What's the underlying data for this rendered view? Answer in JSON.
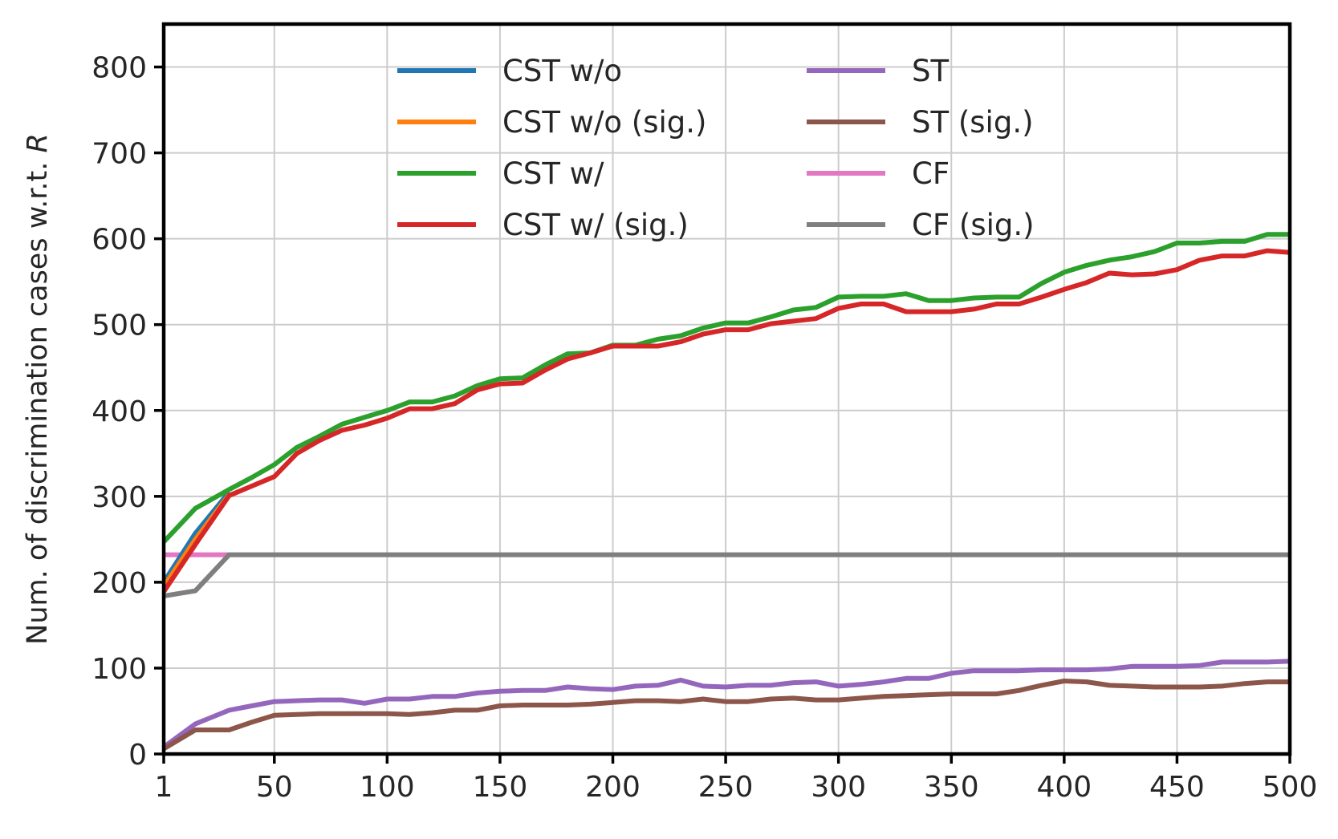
{
  "chart_data": {
    "type": "line",
    "title": "",
    "xlabel": "",
    "ylabel": "Num. of discrimination cases w.r.t. ",
    "ylabel_var": "R",
    "xlim": [
      1,
      500
    ],
    "ylim": [
      0,
      850
    ],
    "xticks": [
      1,
      50,
      100,
      150,
      200,
      250,
      300,
      350,
      400,
      450,
      500
    ],
    "yticks": [
      0,
      100,
      200,
      300,
      400,
      500,
      600,
      700,
      800
    ],
    "grid": true,
    "legend_position": "top-center",
    "legend_columns": 2,
    "series": [
      {
        "name": "CST w/o",
        "color": "#1f77b4",
        "x": [
          1,
          15,
          30
        ],
        "y": [
          200,
          257,
          305
        ]
      },
      {
        "name": "CST w/o (sig.)",
        "color": "#ff7f0e",
        "x": [
          1,
          15,
          30
        ],
        "y": [
          195,
          250,
          302
        ]
      },
      {
        "name": "CST w/",
        "color": "#2ca02c",
        "x": [
          1,
          15,
          30,
          40,
          50,
          60,
          70,
          80,
          90,
          100,
          110,
          120,
          130,
          140,
          150,
          160,
          170,
          180,
          190,
          200,
          210,
          220,
          230,
          240,
          250,
          260,
          270,
          280,
          290,
          300,
          310,
          320,
          330,
          340,
          350,
          360,
          370,
          380,
          390,
          400,
          410,
          420,
          430,
          440,
          450,
          460,
          470,
          480,
          490,
          500
        ],
        "y": [
          247,
          286,
          308,
          322,
          337,
          357,
          370,
          384,
          392,
          400,
          410,
          410,
          417,
          429,
          437,
          438,
          453,
          466,
          467,
          476,
          476,
          483,
          487,
          496,
          502,
          502,
          509,
          517,
          520,
          532,
          533,
          533,
          536,
          528,
          528,
          531,
          532,
          532,
          548,
          561,
          569,
          575,
          579,
          585,
          595,
          595,
          597,
          597,
          605,
          605
        ]
      },
      {
        "name": "CST w/ (sig.)",
        "color": "#d62728",
        "x": [
          1,
          15,
          30,
          40,
          50,
          60,
          70,
          80,
          90,
          100,
          110,
          120,
          130,
          140,
          150,
          160,
          170,
          180,
          190,
          200,
          210,
          220,
          230,
          240,
          250,
          260,
          270,
          280,
          290,
          300,
          310,
          320,
          330,
          340,
          350,
          360,
          370,
          380,
          390,
          400,
          410,
          420,
          430,
          440,
          450,
          460,
          470,
          480,
          490,
          500
        ],
        "y": [
          189,
          244,
          301,
          312,
          323,
          350,
          365,
          377,
          383,
          391,
          402,
          402,
          408,
          424,
          431,
          432,
          447,
          460,
          467,
          475,
          475,
          475,
          480,
          489,
          494,
          494,
          501,
          504,
          507,
          519,
          524,
          524,
          515,
          515,
          515,
          518,
          524,
          524,
          532,
          541,
          549,
          560,
          558,
          559,
          564,
          575,
          580,
          580,
          586,
          584
        ]
      },
      {
        "name": "ST",
        "color": "#9467bd",
        "x": [
          1,
          15,
          30,
          40,
          50,
          60,
          70,
          80,
          90,
          100,
          110,
          120,
          130,
          140,
          150,
          160,
          170,
          180,
          190,
          200,
          210,
          220,
          230,
          240,
          250,
          260,
          270,
          280,
          290,
          300,
          310,
          320,
          330,
          340,
          350,
          360,
          370,
          380,
          390,
          400,
          410,
          420,
          430,
          440,
          450,
          460,
          470,
          480,
          490,
          500
        ],
        "y": [
          8,
          35,
          51,
          56,
          61,
          62,
          63,
          63,
          59,
          64,
          64,
          67,
          67,
          71,
          73,
          74,
          74,
          78,
          76,
          75,
          79,
          80,
          86,
          79,
          78,
          80,
          80,
          83,
          84,
          79,
          81,
          84,
          88,
          88,
          94,
          97,
          97,
          97,
          98,
          98,
          98,
          99,
          102,
          102,
          102,
          103,
          107,
          107,
          107,
          108
        ]
      },
      {
        "name": "ST (sig.)",
        "color": "#8c564b",
        "x": [
          1,
          15,
          30,
          40,
          50,
          60,
          70,
          80,
          90,
          100,
          110,
          120,
          130,
          140,
          150,
          160,
          170,
          180,
          190,
          200,
          210,
          220,
          230,
          240,
          250,
          260,
          270,
          280,
          290,
          300,
          310,
          320,
          330,
          340,
          350,
          360,
          370,
          380,
          390,
          400,
          410,
          420,
          430,
          440,
          450,
          460,
          470,
          480,
          490,
          500
        ],
        "y": [
          6,
          28,
          28,
          37,
          45,
          46,
          47,
          47,
          47,
          47,
          46,
          48,
          51,
          51,
          56,
          57,
          57,
          57,
          58,
          60,
          62,
          62,
          61,
          64,
          61,
          61,
          64,
          65,
          63,
          63,
          65,
          67,
          68,
          69,
          70,
          70,
          70,
          74,
          80,
          85,
          84,
          80,
          79,
          78,
          78,
          78,
          79,
          82,
          84,
          84
        ]
      },
      {
        "name": "CF",
        "color": "#e377c2",
        "x": [
          1,
          30
        ],
        "y": [
          232,
          232
        ]
      },
      {
        "name": "CF (sig.)",
        "color": "#7f7f7f",
        "x": [
          1,
          15,
          30,
          500
        ],
        "y": [
          184,
          190,
          232,
          232
        ]
      }
    ]
  }
}
